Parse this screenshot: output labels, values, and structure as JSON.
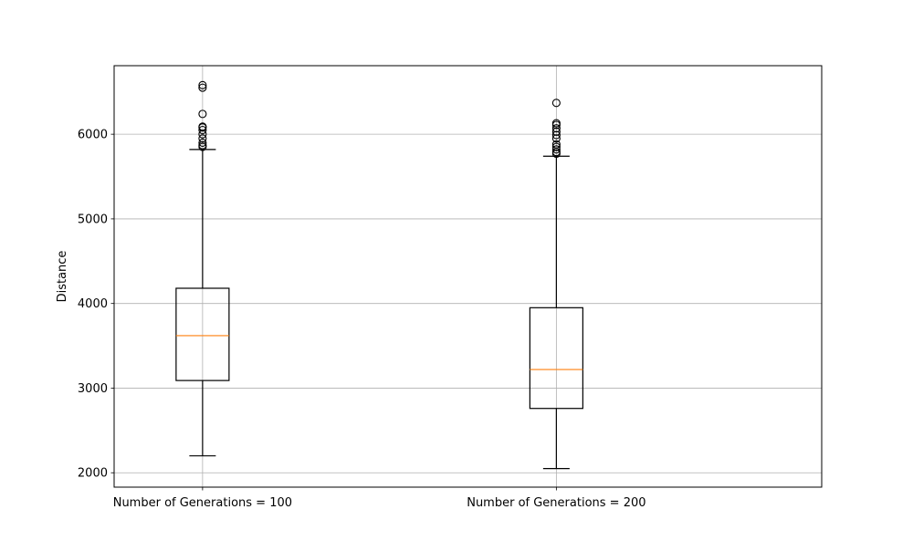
{
  "chart_data": {
    "type": "box",
    "title": "",
    "xlabel": "",
    "ylabel": "Distance",
    "ylim": [
      1830,
      6810
    ],
    "yticks": [
      2000,
      3000,
      4000,
      5000,
      6000
    ],
    "grid": true,
    "categories": [
      "Number of Generations = 100",
      "Number of Generations = 200"
    ],
    "boxes": [
      {
        "label": "Number of Generations = 100",
        "whisker_low": 2200,
        "q1": 3090,
        "median": 3620,
        "q3": 4180,
        "whisker_high": 5820,
        "outliers": [
          5850,
          5870,
          5900,
          5950,
          6000,
          6050,
          6080,
          6090,
          6240,
          6550,
          6580
        ]
      },
      {
        "label": "Number of Generations = 200",
        "whisker_low": 2050,
        "q1": 2760,
        "median": 3220,
        "q3": 3950,
        "whisker_high": 5740,
        "outliers": [
          5770,
          5790,
          5820,
          5850,
          5880,
          5950,
          5990,
          6030,
          6070,
          6110,
          6130,
          6370
        ]
      }
    ],
    "colors": {
      "box": "#000000",
      "median": "#ff7f0e",
      "grid": "#b0b0b0"
    }
  }
}
